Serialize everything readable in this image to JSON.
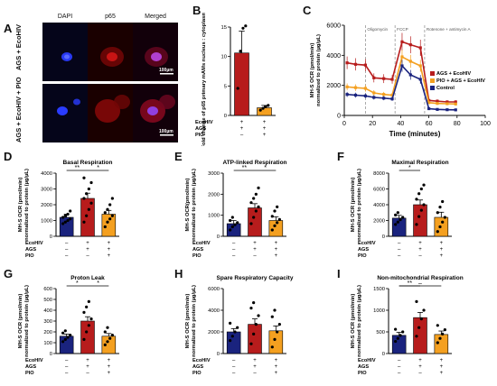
{
  "figure": {
    "panel_letters": [
      "A",
      "B",
      "C",
      "D",
      "E",
      "F",
      "G",
      "H",
      "I"
    ],
    "microscopy": {
      "column_titles": [
        "DAPI",
        "p65",
        "Merged"
      ],
      "row_labels": [
        "AGS + EcoHIV",
        "AGS + EcoHIV + PIO"
      ],
      "scale_bar_label": "100µm"
    },
    "colors": {
      "control": "#1a237e",
      "ags_ecohiv": "#b71c1c",
      "pio_ags_ecohiv": "#f4a020",
      "dapi": "#1e40ff",
      "p65": "#c81010"
    },
    "condition_labels": {
      "rows": [
        "EcoHIV",
        "AGS",
        "PIO"
      ],
      "signs": [
        [
          "–",
          "+",
          "+"
        ],
        [
          "–",
          "+",
          "+"
        ],
        [
          "–",
          "–",
          "+"
        ]
      ],
      "signs_B": [
        [
          "+",
          "+"
        ],
        [
          "+",
          "+"
        ],
        [
          "–",
          "+"
        ]
      ]
    }
  },
  "chart_data": [
    {
      "id": "B",
      "type": "bar",
      "title": "",
      "ylabel": "Fold change of p65 primary mAMs nucleus : cytoplasmic ratio",
      "ylim": [
        0,
        15
      ],
      "yticks": [
        0,
        5,
        10,
        15
      ],
      "categories": [
        "AGS + EcoHIV",
        "PIO + AGS + EcoHIV"
      ],
      "values": [
        10.6,
        1.3
      ],
      "errors": [
        3.7,
        0.4
      ],
      "points": [
        [
          4.6,
          10.9,
          14.8,
          15.2
        ],
        [
          0.9,
          1.2,
          1.5,
          1.7
        ]
      ]
    },
    {
      "id": "C",
      "type": "line",
      "title": "",
      "xlabel": "Time (minutes)",
      "ylabel": "MH-S OCR (pmol/min) normalized to protein (µg/µL)",
      "xlim": [
        0,
        100
      ],
      "ylim": [
        0,
        6000
      ],
      "xticks": [
        0,
        20,
        40,
        60,
        80,
        100
      ],
      "yticks": [
        0,
        2000,
        4000,
        6000
      ],
      "annotations": [
        {
          "label": "Oligomycin",
          "x": 15
        },
        {
          "label": "FCCP",
          "x": 36
        },
        {
          "label": "Rotenone + antimycin A",
          "x": 57
        }
      ],
      "legend_position": "right",
      "x": [
        2,
        8,
        15,
        21,
        28,
        34,
        41,
        47,
        54,
        60,
        66,
        73,
        79
      ],
      "series": [
        {
          "name": "AGS + EcoHIV",
          "values": [
            3500,
            3400,
            3350,
            2500,
            2450,
            2400,
            4900,
            4700,
            4500,
            1000,
            950,
            900,
            900
          ]
        },
        {
          "name": "PIO + AGS + EcoHIV",
          "values": [
            1900,
            1850,
            1800,
            1500,
            1400,
            1350,
            3900,
            3600,
            3300,
            850,
            800,
            780,
            760
          ]
        },
        {
          "name": "Control",
          "values": [
            1400,
            1350,
            1300,
            1200,
            1150,
            1100,
            3300,
            2700,
            2400,
            450,
            400,
            380,
            370
          ]
        }
      ]
    },
    {
      "id": "D",
      "type": "bar",
      "title": "Basal Respiration",
      "ylabel": "MH-S OCR (pmol/min) normalized to protein (µg/µL)",
      "ylim": [
        0,
        4000
      ],
      "yticks": [
        0,
        1000,
        2000,
        3000,
        4000
      ],
      "values": [
        1200,
        2400,
        1400
      ],
      "errors": [
        200,
        330,
        240
      ],
      "sig": [
        {
          "from": 0,
          "to": 1,
          "label": "**"
        },
        {
          "from": 1,
          "to": 2,
          "label": "*"
        }
      ],
      "points": [
        [
          800,
          900,
          1000,
          1100,
          1200,
          1300,
          1400,
          1600
        ],
        [
          900,
          1300,
          1700,
          2100,
          2400,
          2700,
          3000,
          3400,
          3700
        ],
        [
          600,
          900,
          1100,
          1300,
          1500,
          1700,
          2000,
          2400
        ]
      ]
    },
    {
      "id": "E",
      "type": "bar",
      "title": "ATP-linked Respiration",
      "ylabel": "MH-S OCR(pmol/min) normalized to protein (µg/µL)",
      "ylim": [
        0,
        3000
      ],
      "yticks": [
        0,
        1000,
        2000,
        3000
      ],
      "values": [
        600,
        1350,
        750
      ],
      "errors": [
        150,
        200,
        180
      ],
      "sig": [
        {
          "from": 0,
          "to": 1,
          "label": "**"
        },
        {
          "from": 1,
          "to": 2,
          "label": "*"
        }
      ],
      "points": [
        [
          300,
          450,
          550,
          650,
          750,
          900
        ],
        [
          600,
          900,
          1200,
          1400,
          1600,
          1800,
          2000,
          2300
        ],
        [
          300,
          500,
          650,
          800,
          950,
          1200,
          1400
        ]
      ]
    },
    {
      "id": "F",
      "type": "bar",
      "title": "Maximal Respiration",
      "ylabel": "MH-S OCR (pmol/min) normalized to protein (µg/µL)",
      "ylim": [
        0,
        8000
      ],
      "yticks": [
        0,
        2000,
        4000,
        6000,
        8000
      ],
      "values": [
        2300,
        4000,
        2400
      ],
      "errors": [
        350,
        600,
        650
      ],
      "sig": [
        {
          "from": 0,
          "to": 1,
          "label": "*"
        }
      ],
      "points": [
        [
          1500,
          1800,
          2100,
          2400,
          2700,
          3000
        ],
        [
          1500,
          2500,
          3300,
          4000,
          4700,
          5400,
          6000,
          6500
        ],
        [
          600,
          1200,
          1800,
          2400,
          3000,
          3700,
          4400
        ]
      ]
    },
    {
      "id": "G",
      "type": "bar",
      "title": "Proton Leak",
      "ylabel": "MH-S OCR (pmol/min) normalized to protein (µg/µL)",
      "ylim": [
        0,
        600
      ],
      "yticks": [
        0,
        100,
        200,
        300,
        400,
        500,
        600
      ],
      "values": [
        160,
        300,
        160
      ],
      "errors": [
        20,
        40,
        25
      ],
      "sig": [
        {
          "from": 0,
          "to": 1,
          "label": "*"
        },
        {
          "from": 1,
          "to": 2,
          "label": "*"
        }
      ],
      "points": [
        [
          110,
          130,
          150,
          170,
          190,
          210
        ],
        [
          130,
          200,
          260,
          320,
          380,
          430,
          480
        ],
        [
          80,
          110,
          140,
          170,
          200,
          240
        ]
      ]
    },
    {
      "id": "H",
      "type": "bar",
      "title": "Spare Respiratory Capacity",
      "ylabel": "MH-S OCR (pmol/min) normalized to protein (µg/µL)",
      "ylim": [
        0,
        6000
      ],
      "yticks": [
        0,
        2000,
        4000,
        6000
      ],
      "values": [
        2000,
        2700,
        2100
      ],
      "errors": [
        300,
        500,
        450
      ],
      "sig": [],
      "points": [
        [
          1200,
          1600,
          2000,
          2400,
          2800
        ],
        [
          900,
          1800,
          2700,
          3500,
          4200,
          4700
        ],
        [
          600,
          1300,
          2000,
          2700,
          3400,
          4000
        ]
      ]
    },
    {
      "id": "I",
      "type": "bar",
      "title": "Non-mitochondrial Respiration",
      "ylabel": "MH-S OCR (pmol/min) normalized to protein (µg/µL)",
      "ylim": [
        0,
        1500
      ],
      "yticks": [
        0,
        500,
        1000,
        1500
      ],
      "values": [
        420,
        830,
        440
      ],
      "errors": [
        70,
        120,
        80
      ],
      "sig": [
        {
          "from": 0,
          "to": 1,
          "label": "**"
        },
        {
          "from": 0,
          "to": 2,
          "label": "–"
        }
      ],
      "points": [
        [
          280,
          350,
          420,
          500,
          560
        ],
        [
          400,
          600,
          800,
          1000,
          1200
        ],
        [
          250,
          350,
          450,
          550,
          650
        ]
      ]
    }
  ]
}
